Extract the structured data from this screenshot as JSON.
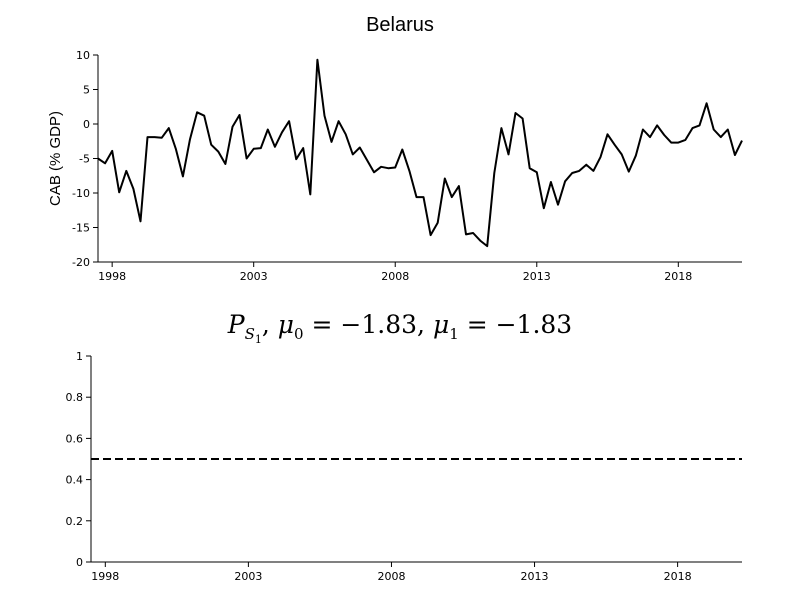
{
  "chart_data": [
    {
      "type": "line",
      "title": "Belarus",
      "xlabel": "",
      "ylabel": "CAB (% GDP)",
      "xlim": [
        1997.5,
        2020.25
      ],
      "ylim": [
        -20,
        10
      ],
      "x_ticks": [
        1998,
        2003,
        2008,
        2013,
        2018
      ],
      "y_ticks": [
        -20,
        -15,
        -10,
        -5,
        0,
        5,
        10
      ],
      "grid": false,
      "series": [
        {
          "color": "#000000",
          "points": [
            [
              1997.5,
              -5.0
            ],
            [
              1997.75,
              -5.7
            ],
            [
              1998.0,
              -3.9
            ],
            [
              1998.25,
              -9.9
            ],
            [
              1998.5,
              -6.8
            ],
            [
              1998.75,
              -9.4
            ],
            [
              1999.0,
              -14.1
            ],
            [
              1999.25,
              -1.9
            ],
            [
              1999.5,
              -1.9
            ],
            [
              1999.75,
              -2.0
            ],
            [
              2000.0,
              -0.6
            ],
            [
              2000.25,
              -3.6
            ],
            [
              2000.5,
              -7.6
            ],
            [
              2000.75,
              -2.2
            ],
            [
              2001.0,
              1.7
            ],
            [
              2001.25,
              1.2
            ],
            [
              2001.5,
              -3.0
            ],
            [
              2001.75,
              -4.0
            ],
            [
              2002.0,
              -5.8
            ],
            [
              2002.25,
              -0.4
            ],
            [
              2002.5,
              1.3
            ],
            [
              2002.75,
              -5.0
            ],
            [
              2003.0,
              -3.6
            ],
            [
              2003.25,
              -3.5
            ],
            [
              2003.5,
              -0.8
            ],
            [
              2003.75,
              -3.3
            ],
            [
              2004.0,
              -1.2
            ],
            [
              2004.25,
              0.4
            ],
            [
              2004.5,
              -5.1
            ],
            [
              2004.75,
              -3.5
            ],
            [
              2005.0,
              -10.2
            ],
            [
              2005.25,
              9.3
            ],
            [
              2005.5,
              1.2
            ],
            [
              2005.75,
              -2.6
            ],
            [
              2006.0,
              0.4
            ],
            [
              2006.25,
              -1.5
            ],
            [
              2006.5,
              -4.4
            ],
            [
              2006.75,
              -3.4
            ],
            [
              2007.0,
              -5.2
            ],
            [
              2007.25,
              -7.0
            ],
            [
              2007.5,
              -6.2
            ],
            [
              2007.75,
              -6.4
            ],
            [
              2008.0,
              -6.3
            ],
            [
              2008.25,
              -3.7
            ],
            [
              2008.5,
              -6.8
            ],
            [
              2008.75,
              -10.6
            ],
            [
              2009.0,
              -10.6
            ],
            [
              2009.25,
              -16.1
            ],
            [
              2009.5,
              -14.3
            ],
            [
              2009.75,
              -7.9
            ],
            [
              2010.0,
              -10.6
            ],
            [
              2010.25,
              -9.0
            ],
            [
              2010.5,
              -16.0
            ],
            [
              2010.75,
              -15.8
            ],
            [
              2011.0,
              -16.9
            ],
            [
              2011.25,
              -17.7
            ],
            [
              2011.5,
              -7.1
            ],
            [
              2011.75,
              -0.6
            ],
            [
              2012.0,
              -4.4
            ],
            [
              2012.25,
              1.6
            ],
            [
              2012.5,
              0.8
            ],
            [
              2012.75,
              -6.4
            ],
            [
              2013.0,
              -7.0
            ],
            [
              2013.25,
              -12.2
            ],
            [
              2013.5,
              -8.4
            ],
            [
              2013.75,
              -11.7
            ],
            [
              2014.0,
              -8.3
            ],
            [
              2014.25,
              -7.1
            ],
            [
              2014.5,
              -6.8
            ],
            [
              2014.75,
              -5.9
            ],
            [
              2015.0,
              -6.8
            ],
            [
              2015.25,
              -4.8
            ],
            [
              2015.5,
              -1.5
            ],
            [
              2015.75,
              -3.0
            ],
            [
              2016.0,
              -4.4
            ],
            [
              2016.25,
              -6.9
            ],
            [
              2016.5,
              -4.6
            ],
            [
              2016.75,
              -0.8
            ],
            [
              2017.0,
              -1.9
            ],
            [
              2017.25,
              -0.2
            ],
            [
              2017.5,
              -1.6
            ],
            [
              2017.75,
              -2.7
            ],
            [
              2018.0,
              -2.7
            ],
            [
              2018.25,
              -2.3
            ],
            [
              2018.5,
              -0.6
            ],
            [
              2018.75,
              -0.2
            ],
            [
              2019.0,
              3.0
            ],
            [
              2019.25,
              -0.8
            ],
            [
              2019.5,
              -1.9
            ],
            [
              2019.75,
              -0.8
            ],
            [
              2020.0,
              -4.5
            ],
            [
              2020.25,
              -2.4
            ]
          ]
        }
      ]
    },
    {
      "type": "line",
      "title": "P_{S_1}, μ_0 = −1.83, μ_1 = −1.83",
      "title_parts": {
        "P": "P",
        "S": "S",
        "one": "1",
        "mu": "μ",
        "zero": "0",
        "equals_mu0": " = −1.83, ",
        "equals_mu1": " = −1.83",
        "comma": ", "
      },
      "xlabel": "",
      "ylabel": "",
      "xlim": [
        1997.5,
        2020.25
      ],
      "ylim": [
        0,
        1
      ],
      "x_ticks": [
        1998,
        2003,
        2008,
        2013,
        2018
      ],
      "y_ticks": [
        0,
        0.2,
        0.4,
        0.6,
        0.8,
        1
      ],
      "y_tick_labels": [
        "0",
        "0.2",
        "0.4",
        "0.6",
        "0.8",
        "1"
      ],
      "grid": false,
      "series": [
        {
          "style": "dashed",
          "color": "#000000",
          "points": [
            [
              1997.5,
              0.5
            ],
            [
              2020.25,
              0.5
            ]
          ]
        }
      ]
    }
  ]
}
